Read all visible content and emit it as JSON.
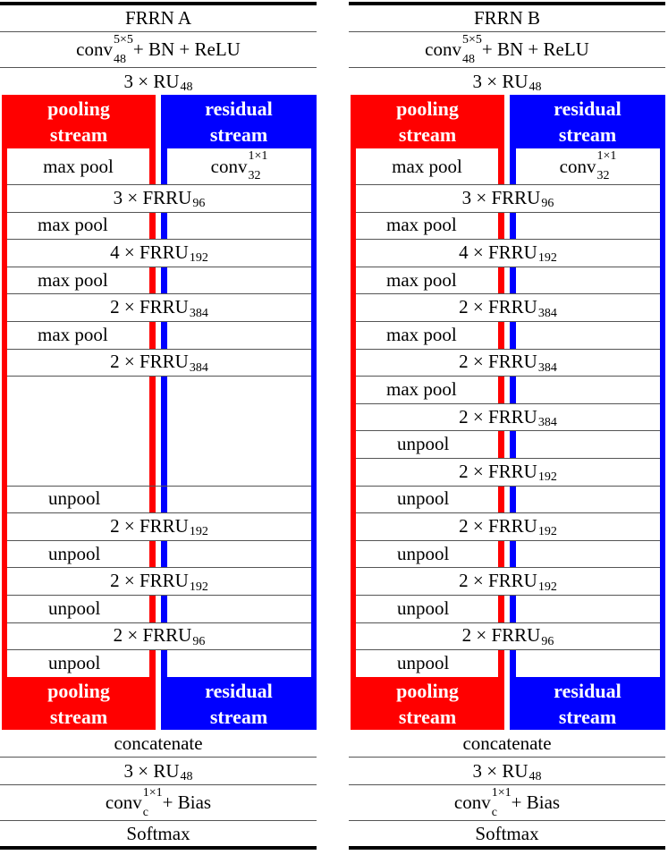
{
  "colors": {
    "pooling": "#ff0000",
    "residual": "#0000ff"
  },
  "tables": [
    {
      "title": "FRRN A",
      "pre": [
        {
          "pre": "conv",
          "sup": "5×5",
          "sub": "48",
          "post": " + BN + ReLU"
        },
        {
          "pre": "3 × RU",
          "sub": "48"
        }
      ],
      "header": {
        "pooling": "pooling stream",
        "residual": "residual stream"
      },
      "body": [
        {
          "type": "split",
          "left": {
            "pre": "max pool"
          },
          "right": {
            "pre": "conv",
            "sup": "1×1",
            "sub": "32"
          }
        },
        {
          "type": "full",
          "text": {
            "pre": "3 × FRRU",
            "sub": "96"
          }
        },
        {
          "type": "split",
          "left": {
            "pre": "max pool"
          }
        },
        {
          "type": "full",
          "text": {
            "pre": "4 × FRRU",
            "sub": "192"
          }
        },
        {
          "type": "split",
          "left": {
            "pre": "max pool"
          }
        },
        {
          "type": "full",
          "text": {
            "pre": "2 × FRRU",
            "sub": "384"
          }
        },
        {
          "type": "split",
          "left": {
            "pre": "max pool"
          }
        },
        {
          "type": "full",
          "text": {
            "pre": "2 × FRRU",
            "sub": "384"
          }
        },
        {
          "type": "empty",
          "span": 4
        },
        {
          "type": "split",
          "left": {
            "pre": "unpool"
          }
        },
        {
          "type": "full",
          "text": {
            "pre": "2 × FRRU",
            "sub": "192"
          }
        },
        {
          "type": "split",
          "left": {
            "pre": "unpool"
          }
        },
        {
          "type": "full",
          "text": {
            "pre": "2 × FRRU",
            "sub": "192"
          }
        },
        {
          "type": "split",
          "left": {
            "pre": "unpool"
          }
        },
        {
          "type": "full",
          "text": {
            "pre": "2 × FRRU",
            "sub": "96"
          }
        },
        {
          "type": "split",
          "left": {
            "pre": "unpool"
          }
        }
      ],
      "post": [
        {
          "pre": "concatenate"
        },
        {
          "pre": "3 × RU",
          "sub": "48"
        },
        {
          "pre": "conv",
          "sup": "1×1",
          "sub": "c",
          "post": " + Bias"
        },
        {
          "pre": "Softmax"
        }
      ]
    },
    {
      "title": "FRRN B",
      "pre": [
        {
          "pre": "conv",
          "sup": "5×5",
          "sub": "48",
          "post": " + BN + ReLU"
        },
        {
          "pre": "3 × RU",
          "sub": "48"
        }
      ],
      "header": {
        "pooling": "pooling stream",
        "residual": "residual stream"
      },
      "body": [
        {
          "type": "split",
          "left": {
            "pre": "max pool"
          },
          "right": {
            "pre": "conv",
            "sup": "1×1",
            "sub": "32"
          }
        },
        {
          "type": "full",
          "text": {
            "pre": "3 × FRRU",
            "sub": "96"
          }
        },
        {
          "type": "split",
          "left": {
            "pre": "max pool"
          }
        },
        {
          "type": "full",
          "text": {
            "pre": "4 × FRRU",
            "sub": "192"
          }
        },
        {
          "type": "split",
          "left": {
            "pre": "max pool"
          }
        },
        {
          "type": "full",
          "text": {
            "pre": "2 × FRRU",
            "sub": "384"
          }
        },
        {
          "type": "split",
          "left": {
            "pre": "max pool"
          }
        },
        {
          "type": "full",
          "text": {
            "pre": "2 × FRRU",
            "sub": "384"
          }
        },
        {
          "type": "split",
          "left": {
            "pre": "max pool"
          }
        },
        {
          "type": "full",
          "text": {
            "pre": "2 × FRRU",
            "sub": "384"
          }
        },
        {
          "type": "split",
          "left": {
            "pre": "unpool"
          }
        },
        {
          "type": "full",
          "text": {
            "pre": "2 × FRRU",
            "sub": "192"
          }
        },
        {
          "type": "split",
          "left": {
            "pre": "unpool"
          }
        },
        {
          "type": "full",
          "text": {
            "pre": "2 × FRRU",
            "sub": "192"
          }
        },
        {
          "type": "split",
          "left": {
            "pre": "unpool"
          }
        },
        {
          "type": "full",
          "text": {
            "pre": "2 × FRRU",
            "sub": "192"
          }
        },
        {
          "type": "split",
          "left": {
            "pre": "unpool"
          }
        },
        {
          "type": "full",
          "text": {
            "pre": "2 × FRRU",
            "sub": "96"
          }
        },
        {
          "type": "split",
          "left": {
            "pre": "unpool"
          }
        }
      ],
      "post": [
        {
          "pre": "concatenate"
        },
        {
          "pre": "3 × RU",
          "sub": "48"
        },
        {
          "pre": "conv",
          "sup": "1×1",
          "sub": "c",
          "post": " + Bias"
        },
        {
          "pre": "Softmax"
        }
      ]
    }
  ]
}
